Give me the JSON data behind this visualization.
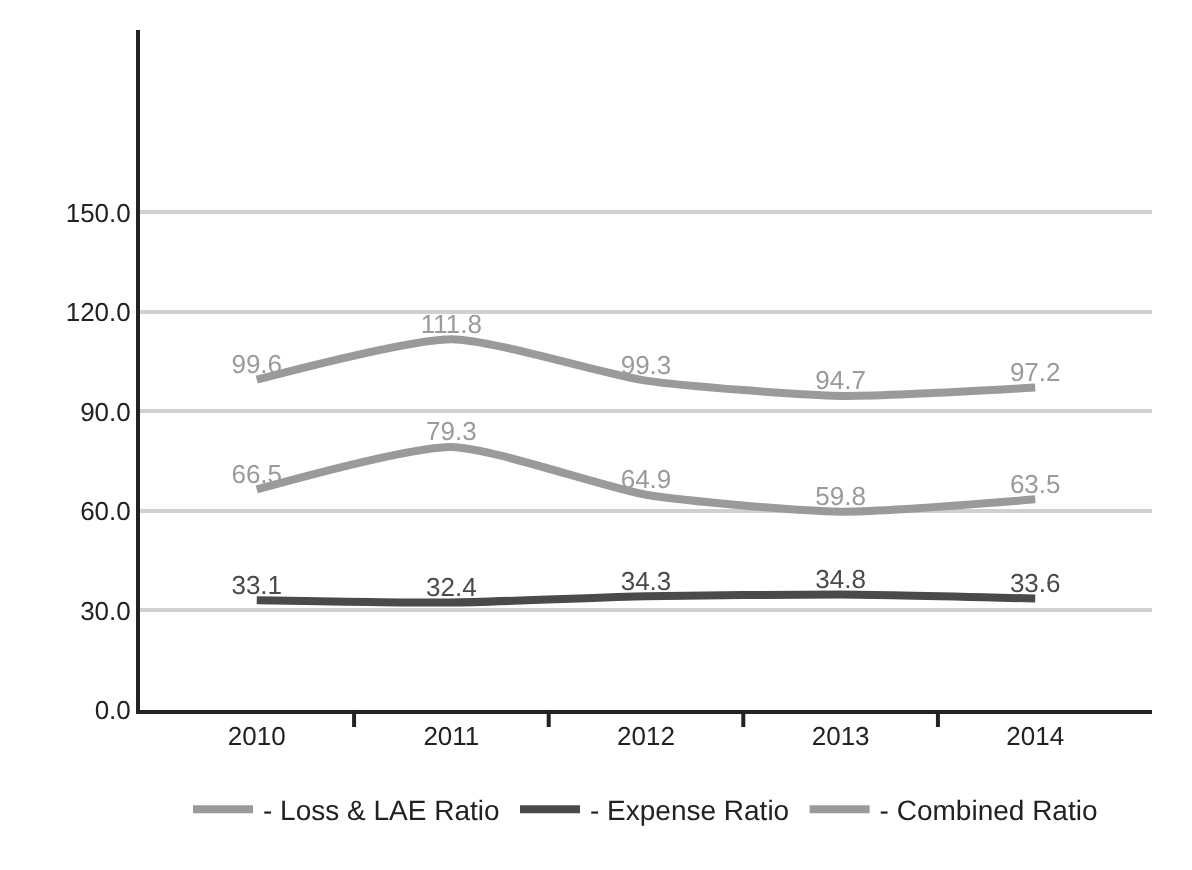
{
  "chart_data": {
    "type": "line",
    "categories": [
      "2010",
      "2011",
      "2012",
      "2013",
      "2014"
    ],
    "series": [
      {
        "name": "- Loss & LAE Ratio",
        "color": "#9a9a9a",
        "values": [
          66.5,
          79.3,
          64.9,
          59.8,
          63.5
        ]
      },
      {
        "name": "- Expense Ratio",
        "color": "#4a4a4a",
        "values": [
          33.1,
          32.4,
          34.3,
          34.8,
          33.6
        ]
      },
      {
        "name": "- Combined Ratio",
        "color": "#9a9a9a",
        "values": [
          99.6,
          111.8,
          99.3,
          94.7,
          97.2
        ]
      }
    ],
    "ylim": [
      0,
      205
    ],
    "yticks": [
      {
        "value": 0,
        "label": "0.0"
      },
      {
        "value": 30,
        "label": "30.0"
      },
      {
        "value": 60,
        "label": "60.0"
      },
      {
        "value": 90,
        "label": "90.0"
      },
      {
        "value": 120,
        "label": "120.0"
      },
      {
        "value": 150,
        "label": "150.0"
      }
    ],
    "grid": "y",
    "legend": "bottom",
    "marker": "none",
    "line_style": "solid",
    "data_labels": true
  }
}
